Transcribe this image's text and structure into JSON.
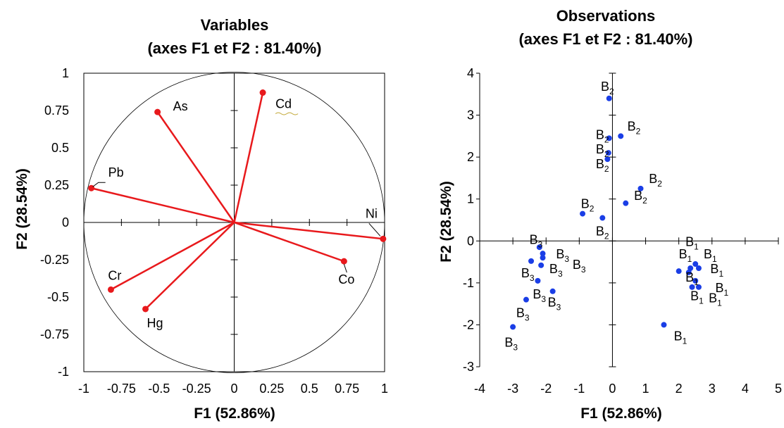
{
  "chart_data": [
    {
      "type": "biplot-variables",
      "title": "Variables",
      "subtitle": "(axes F1 et F2 : 81.40%)",
      "xlabel": "F1 (52.86%)",
      "ylabel": "F2 (28.54%)",
      "xlim": [
        -1,
        1
      ],
      "ylim": [
        -1,
        1
      ],
      "xticks": [
        "-1",
        "-0.75",
        "-0.5",
        "-0.25",
        "0",
        "0.25",
        "0.5",
        "0.75",
        "1"
      ],
      "yticks": [
        "1",
        "0.75",
        "0.5",
        "0.25",
        "0",
        "-0.25",
        "-0.5",
        "-0.75",
        "-1"
      ],
      "correlation_circle": true,
      "vector_color": "#e8191c",
      "variables": [
        {
          "name": "As",
          "x": -0.51,
          "y": 0.74
        },
        {
          "name": "Cd",
          "x": 0.19,
          "y": 0.87
        },
        {
          "name": "Pb",
          "x": -0.95,
          "y": 0.23
        },
        {
          "name": "Ni",
          "x": 0.99,
          "y": -0.11
        },
        {
          "name": "Cr",
          "x": -0.82,
          "y": -0.45
        },
        {
          "name": "Hg",
          "x": -0.59,
          "y": -0.58
        },
        {
          "name": "Co",
          "x": 0.73,
          "y": -0.26
        }
      ]
    },
    {
      "type": "scatter",
      "title": "Observations",
      "subtitle": "(axes F1 et F2 : 81.40%)",
      "xlabel": "F1 (52.86%)",
      "ylabel": "F2 (28.54%)",
      "xlim": [
        -4,
        5
      ],
      "ylim": [
        -3,
        4
      ],
      "xticks": [
        "-4",
        "-3",
        "-2",
        "-1",
        "0",
        "1",
        "2",
        "3",
        "4",
        "5"
      ],
      "yticks": [
        "4",
        "3",
        "2",
        "1",
        "0",
        "-1",
        "-2",
        "-3"
      ],
      "point_color": "#1a3ee6",
      "points": [
        {
          "group": "B",
          "sub": "2",
          "x": -0.1,
          "y": 3.4
        },
        {
          "group": "B",
          "sub": "2",
          "x": 0.25,
          "y": 2.5
        },
        {
          "group": "B",
          "sub": "2",
          "x": -0.1,
          "y": 2.45
        },
        {
          "group": "B",
          "sub": "2",
          "x": -0.12,
          "y": 2.1
        },
        {
          "group": "B",
          "sub": "2",
          "x": -0.15,
          "y": 1.95
        },
        {
          "group": "B",
          "sub": "2",
          "x": 0.85,
          "y": 1.25
        },
        {
          "group": "B",
          "sub": "2",
          "x": 0.4,
          "y": 0.9
        },
        {
          "group": "B",
          "sub": "2",
          "x": -0.9,
          "y": 0.65
        },
        {
          "group": "B",
          "sub": "2",
          "x": -0.3,
          "y": 0.55
        },
        {
          "group": "B",
          "sub": "1",
          "x": 2.5,
          "y": -0.55
        },
        {
          "group": "B",
          "sub": "1",
          "x": 2.35,
          "y": -0.65
        },
        {
          "group": "B",
          "sub": "1",
          "x": 2.6,
          "y": -0.65
        },
        {
          "group": "B",
          "sub": "1",
          "x": 2.0,
          "y": -0.72
        },
        {
          "group": "B",
          "sub": "1",
          "x": 2.3,
          "y": -0.75
        },
        {
          "group": "B",
          "sub": "1",
          "x": 2.5,
          "y": -0.95
        },
        {
          "group": "B",
          "sub": "1",
          "x": 2.4,
          "y": -1.1
        },
        {
          "group": "B",
          "sub": "1",
          "x": 2.6,
          "y": -1.1
        },
        {
          "group": "B",
          "sub": "1",
          "x": 1.55,
          "y": -2.0
        },
        {
          "group": "B",
          "sub": "3",
          "x": -2.2,
          "y": -0.15
        },
        {
          "group": "B",
          "sub": "3",
          "x": -2.1,
          "y": -0.3
        },
        {
          "group": "B",
          "sub": "3",
          "x": -2.1,
          "y": -0.4
        },
        {
          "group": "B",
          "sub": "3",
          "x": -2.45,
          "y": -0.48
        },
        {
          "group": "B",
          "sub": "3",
          "x": -2.15,
          "y": -0.58
        },
        {
          "group": "B",
          "sub": "3",
          "x": -2.25,
          "y": -0.95
        },
        {
          "group": "B",
          "sub": "3",
          "x": -1.8,
          "y": -1.2
        },
        {
          "group": "B",
          "sub": "3",
          "x": -2.6,
          "y": -1.4
        },
        {
          "group": "B",
          "sub": "3",
          "x": -3.0,
          "y": -2.05
        }
      ],
      "labels": [
        {
          "group": "B",
          "sub": "2",
          "x": -0.35,
          "y": 3.7
        },
        {
          "group": "B",
          "sub": "2",
          "x": 0.45,
          "y": 2.75
        },
        {
          "group": "B",
          "sub": "2",
          "x": -0.5,
          "y": 2.55
        },
        {
          "group": "B",
          "sub": "2",
          "x": -0.5,
          "y": 2.2
        },
        {
          "group": "B",
          "sub": "2",
          "x": -0.5,
          "y": 1.85
        },
        {
          "group": "B",
          "sub": "2",
          "x": 1.1,
          "y": 1.5
        },
        {
          "group": "B",
          "sub": "2",
          "x": 0.65,
          "y": 1.1
        },
        {
          "group": "B",
          "sub": "2",
          "x": -0.95,
          "y": 0.9
        },
        {
          "group": "B",
          "sub": "2",
          "x": -0.5,
          "y": 0.25
        },
        {
          "group": "B",
          "sub": "1",
          "x": 2.2,
          "y": 0.0
        },
        {
          "group": "B",
          "sub": "1",
          "x": 2.75,
          "y": -0.3
        },
        {
          "group": "B",
          "sub": "1",
          "x": 2.0,
          "y": -0.3
        },
        {
          "group": "B",
          "sub": "1",
          "x": 2.95,
          "y": -0.65
        },
        {
          "group": "B",
          "sub": "1",
          "x": 2.2,
          "y": -0.85
        },
        {
          "group": "B",
          "sub": "1",
          "x": 3.1,
          "y": -1.1
        },
        {
          "group": "B",
          "sub": "1",
          "x": 2.35,
          "y": -1.3
        },
        {
          "group": "B",
          "sub": "1",
          "x": 2.9,
          "y": -1.35
        },
        {
          "group": "B",
          "sub": "1",
          "x": 1.85,
          "y": -2.25
        },
        {
          "group": "B",
          "sub": "3",
          "x": -2.5,
          "y": 0.05
        },
        {
          "group": "B",
          "sub": "3",
          "x": -1.7,
          "y": -0.3
        },
        {
          "group": "B",
          "sub": "3",
          "x": -1.2,
          "y": -0.55
        },
        {
          "group": "B",
          "sub": "3",
          "x": -1.9,
          "y": -0.65
        },
        {
          "group": "B",
          "sub": "3",
          "x": -2.75,
          "y": -0.75
        },
        {
          "group": "B",
          "sub": "3",
          "x": -2.4,
          "y": -1.25
        },
        {
          "group": "B",
          "sub": "3",
          "x": -1.95,
          "y": -1.45
        },
        {
          "group": "B",
          "sub": "3",
          "x": -2.9,
          "y": -1.7
        },
        {
          "group": "B",
          "sub": "3",
          "x": -3.25,
          "y": -2.4
        }
      ]
    }
  ]
}
